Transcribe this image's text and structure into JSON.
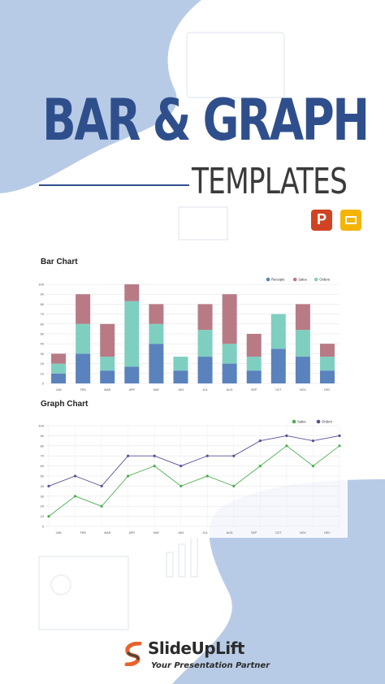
{
  "header": {
    "title": "BAR & GRAPH",
    "subtitle": "TEMPLATES"
  },
  "app_icons": [
    {
      "name": "powerpoint-icon",
      "letter": "P",
      "color": "#d04423"
    },
    {
      "name": "google-slides-icon",
      "color": "#f5b400"
    }
  ],
  "colors": {
    "background_shape": "#b8cbe6",
    "title": "#2f4f8c",
    "receipts": "#5a82bd",
    "sales": "#b87b86",
    "orders": "#7fcfc0",
    "line_sales": "#4caf50",
    "line_orders": "#5b4f96"
  },
  "chart_data": [
    {
      "type": "bar",
      "stacked": true,
      "title": "Bar Chart",
      "categories": [
        "JAN",
        "FEB",
        "MAR",
        "APR",
        "MAY",
        "JUN",
        "JUL",
        "AUG",
        "SEP",
        "OCT",
        "NOV",
        "DEC"
      ],
      "series": [
        {
          "name": "Receipts",
          "values": [
            10,
            30,
            13,
            17,
            40,
            13,
            27,
            20,
            13,
            35,
            27,
            13
          ]
        },
        {
          "name": "Orders",
          "values": [
            10,
            30,
            14,
            66,
            20,
            14,
            27,
            20,
            14,
            35,
            27,
            14
          ]
        },
        {
          "name": "Sales",
          "values": [
            10,
            30,
            33,
            17,
            20,
            0,
            26,
            50,
            23,
            0,
            26,
            13
          ]
        }
      ],
      "legend": [
        "Receipts",
        "Sales",
        "Orders"
      ],
      "legend_position": "top-right",
      "yticks": [
        0,
        10,
        20,
        30,
        40,
        50,
        60,
        70,
        80,
        90,
        100
      ],
      "ylim": [
        0,
        100
      ],
      "grid": true
    },
    {
      "type": "line",
      "title": "Graph Chart",
      "categories": [
        "JAN",
        "FEB",
        "MAR",
        "APR",
        "MAY",
        "JUN",
        "JUL",
        "AUG",
        "SEP",
        "OCT",
        "NOV",
        "DEC"
      ],
      "series": [
        {
          "name": "Sales",
          "values": [
            10,
            30,
            20,
            50,
            60,
            40,
            50,
            40,
            60,
            80,
            60,
            80
          ]
        },
        {
          "name": "Orders",
          "values": [
            40,
            50,
            40,
            70,
            70,
            60,
            70,
            70,
            85,
            90,
            85,
            90
          ]
        }
      ],
      "legend": [
        "Sales",
        "Orders"
      ],
      "legend_position": "top-right",
      "yticks": [
        0,
        10,
        20,
        30,
        40,
        50,
        60,
        70,
        80,
        90,
        100
      ],
      "ylim": [
        0,
        100
      ],
      "grid": true
    }
  ],
  "brand": {
    "name": "SlideUpLift",
    "tagline": "Your Presentation Partner"
  }
}
